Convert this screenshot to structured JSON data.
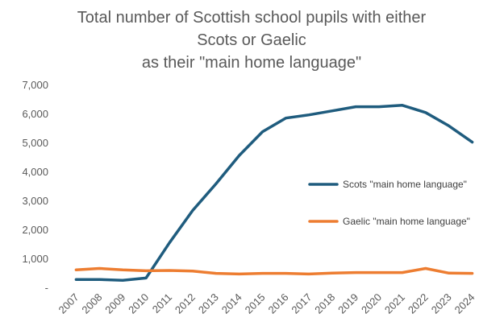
{
  "chart_data": {
    "type": "line",
    "title_lines": [
      "Total number of Scottish school pupils with either",
      "Scots or Gaelic",
      "as their \"main home language\""
    ],
    "xlabel": "",
    "ylabel": "",
    "x": [
      "2007",
      "2008",
      "2009",
      "2010",
      "2011",
      "2012",
      "2013",
      "2014",
      "2015",
      "2016",
      "2017",
      "2018",
      "2019",
      "2020",
      "2021",
      "2022",
      "2023",
      "2024"
    ],
    "ylim": [
      0,
      7000
    ],
    "yticks": [
      0,
      1000,
      2000,
      3000,
      4000,
      5000,
      6000,
      7000
    ],
    "ytick_labels": [
      "-",
      "1,000",
      "2,000",
      "3,000",
      "4,000",
      "5,000",
      "6,000",
      "7,000"
    ],
    "grid": false,
    "legend_position": "right",
    "series": [
      {
        "name": "Scots \"main home language\"",
        "color": "#1f5c7e",
        "values": [
          300,
          300,
          270,
          350,
          1560,
          2680,
          3600,
          4580,
          5400,
          5870,
          5980,
          6120,
          6260,
          6260,
          6310,
          6060,
          5600,
          5040
        ]
      },
      {
        "name": "Gaelic \"main home language\"",
        "color": "#ed7d31",
        "values": [
          630,
          680,
          630,
          600,
          610,
          590,
          510,
          490,
          510,
          510,
          490,
          520,
          540,
          540,
          540,
          680,
          520,
          510
        ]
      }
    ]
  }
}
